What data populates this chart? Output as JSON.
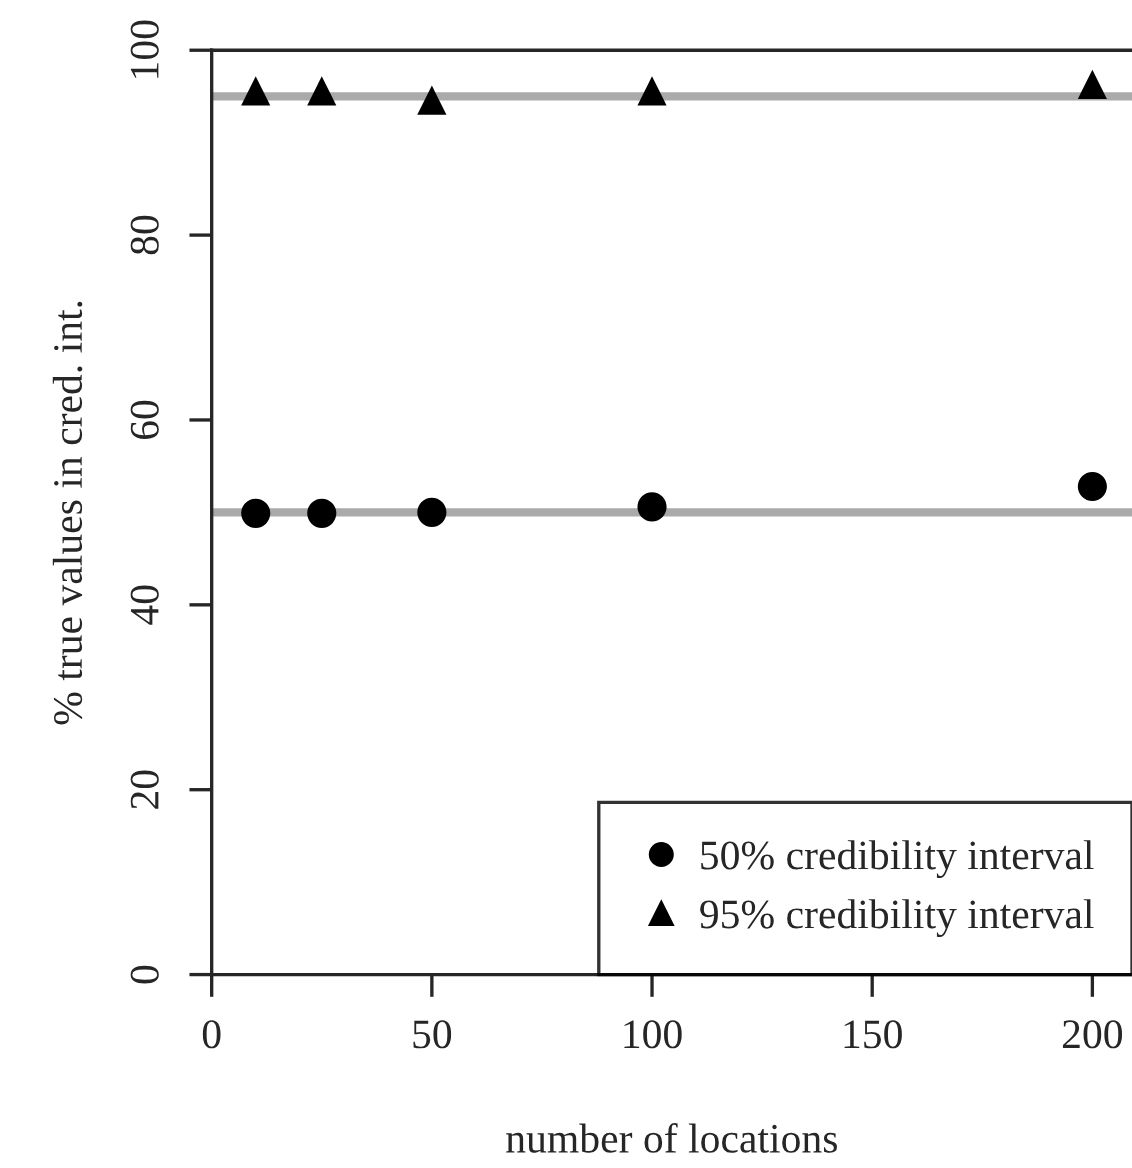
{
  "chart_data": {
    "type": "scatter",
    "xlabel": "number of locations",
    "ylabel": "% true values in cred. int.",
    "x": [
      10,
      25,
      50,
      100,
      200
    ],
    "series": [
      {
        "name": "50% credibility interval",
        "color": "#000000",
        "marker": "circle",
        "values": [
          49.9,
          49.9,
          50.0,
          50.6,
          52.8
        ]
      },
      {
        "name": "95% credibility interval",
        "color": "#000000",
        "marker": "triangle",
        "values": [
          95.6,
          95.6,
          94.6,
          95.6,
          96.3
        ]
      }
    ],
    "xlim": [
      0,
      209
    ],
    "xticks": [
      0,
      50,
      100,
      150,
      200
    ],
    "ylim": [
      0,
      100
    ],
    "yticks": [
      0,
      20,
      40,
      60,
      80,
      100
    ],
    "ref_lines": [
      {
        "axis": "y",
        "value": 50,
        "color": "#aaaaaa"
      },
      {
        "axis": "y",
        "value": 95,
        "color": "#aaaaaa"
      }
    ],
    "grid": false,
    "legend": "bottom right"
  }
}
